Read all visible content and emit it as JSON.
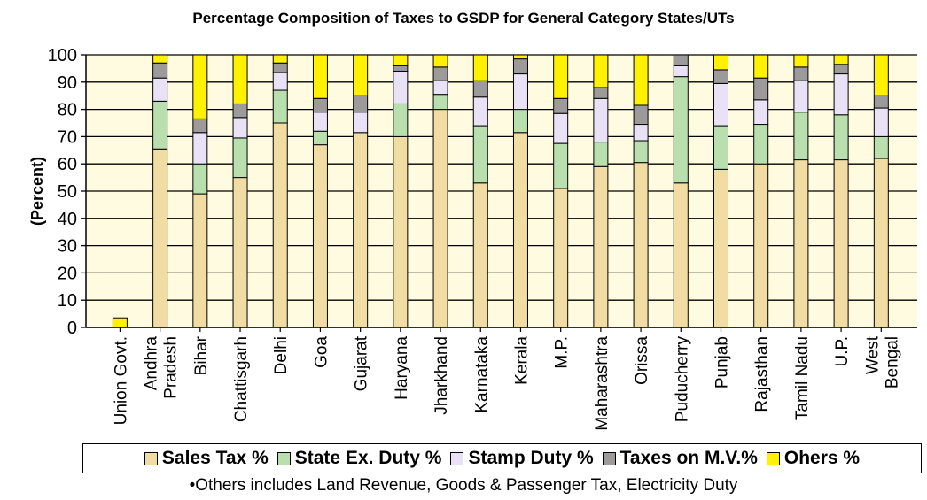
{
  "chart_data": {
    "type": "bar",
    "stacked": true,
    "title": "Percentage Composition of Taxes to GSDP for General Category States/UTs",
    "ylabel": "(Percent)",
    "xlabel": "",
    "ylim": [
      0,
      100
    ],
    "yticks": [
      0,
      10,
      20,
      30,
      40,
      50,
      60,
      70,
      80,
      90,
      100
    ],
    "grid": true,
    "legend_position": "bottom",
    "categories": [
      [
        "Union Govt."
      ],
      [
        "Andhra",
        "Pradesh"
      ],
      [
        "Bihar"
      ],
      [
        "Chattisgarh"
      ],
      [
        "Delhi"
      ],
      [
        "Goa"
      ],
      [
        "Gujarat"
      ],
      [
        "Haryana"
      ],
      [
        "Jharkhand"
      ],
      [
        "Karnataka"
      ],
      [
        "Kerala"
      ],
      [
        "M.P."
      ],
      [
        "Maharashtra"
      ],
      [
        "Orissa"
      ],
      [
        "Puducherry"
      ],
      [
        "Punjab"
      ],
      [
        "Rajasthan"
      ],
      [
        "Tamil Nadu"
      ],
      [
        "U.P."
      ],
      [
        "West",
        "Bengal"
      ]
    ],
    "series": [
      {
        "name": "Sales Tax %",
        "color": "#f1dca4",
        "values": [
          0,
          65.5,
          49,
          55,
          75,
          67,
          71.5,
          70,
          80,
          53,
          71.5,
          51,
          59,
          60.5,
          53,
          58,
          60,
          61.5,
          61.5,
          62
        ]
      },
      {
        "name": "State Ex. Duty %",
        "color": "#b9dfae",
        "values": [
          0,
          17.5,
          11,
          14.5,
          12,
          5,
          0,
          12,
          5.5,
          21,
          8.5,
          16.5,
          9,
          8,
          39,
          16,
          14.5,
          17.5,
          16.5,
          8
        ]
      },
      {
        "name": "Stamp Duty %",
        "color": "#e9e2f6",
        "values": [
          0,
          8.5,
          11.5,
          7.5,
          6.5,
          7,
          7.5,
          12,
          5,
          10.5,
          13,
          11,
          16,
          6,
          4,
          15.5,
          9,
          11.5,
          15,
          10.5
        ]
      },
      {
        "name": "Taxes on M.V.%",
        "color": "#9d9a9a",
        "values": [
          0,
          5.5,
          5,
          5,
          3.5,
          5,
          6,
          2,
          5,
          6,
          5.5,
          5.5,
          4,
          7,
          4,
          5,
          8,
          5,
          3.5,
          4.5
        ]
      },
      {
        "name": "Ohers %",
        "color": "#fff100",
        "values": [
          3.5,
          3,
          23.5,
          18,
          3,
          16,
          15,
          4,
          4.5,
          9.5,
          1.5,
          16,
          12,
          18.5,
          0,
          5.5,
          8.5,
          4.5,
          3.5,
          15
        ]
      }
    ],
    "note": "•Others includes Land Revenue, Goods & Passenger Tax, Electricity Duty"
  }
}
